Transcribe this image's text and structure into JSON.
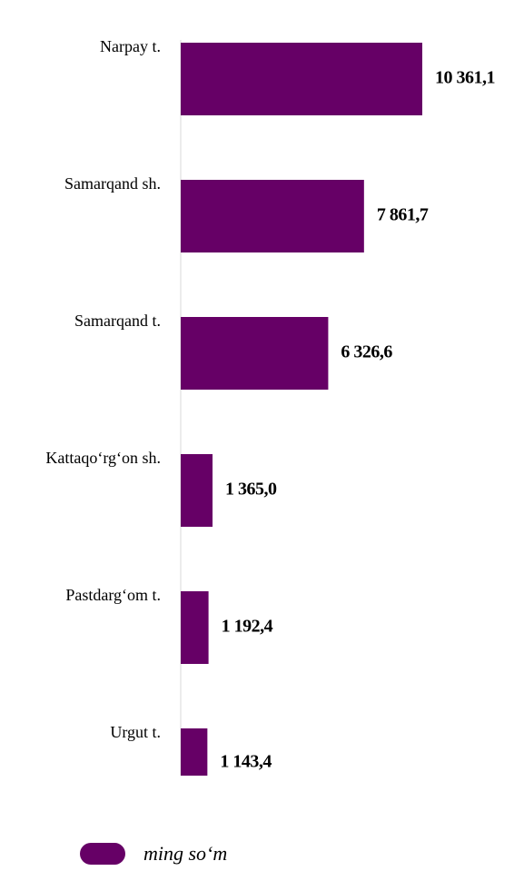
{
  "chart_data": {
    "type": "barh",
    "categories": [
      "Narpay t.",
      "Samarqand sh.",
      "Samarqand t.",
      "Kattaqo‘rg‘on sh.",
      "Pastdarg‘om t.",
      "Urgut t."
    ],
    "series": [
      {
        "name": "ming so‘m",
        "color": "#660066",
        "values": [
          10361.1,
          7861.7,
          6326.6,
          1365.0,
          1192.4,
          1143.4
        ],
        "value_labels": [
          "10 361,1",
          "7 861,7",
          "6 326,6",
          "1 365,0",
          "1 192,4",
          "1 143,4"
        ]
      }
    ],
    "legend": "bottom-left"
  }
}
